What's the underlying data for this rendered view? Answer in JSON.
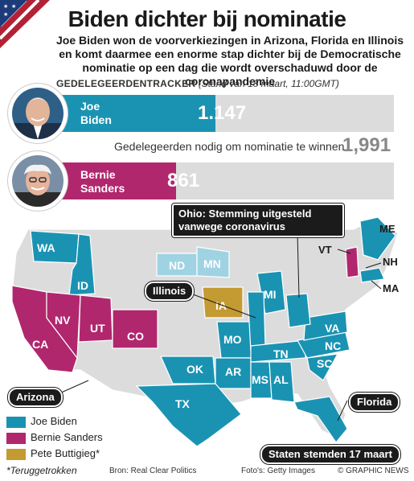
{
  "title": "Biden dichter bij nominatie",
  "subtitle": "Joe Biden won de voorverkiezingen in Arizona, Florida en Illinois en komt daarmee een enorme stap dichter bij de Democratische nominatie op een dag die wordt overschaduwd door de coronapandemie",
  "tracker": {
    "heading": "GEDELEGEERDENTRACKER",
    "stand": "(Stand van 18 maart, 11:00GMT)",
    "needed_label": "Gedelegeerden nodig om nominatie te winnen",
    "needed_value": "1,991",
    "needed_number": 1991
  },
  "candidates": [
    {
      "name_line1": "Joe",
      "name_line2": "Biden",
      "delegates": "1.147",
      "delegates_number": 1147,
      "color": "#1a93b3"
    },
    {
      "name_line1": "Bernie",
      "name_line2": "Sanders",
      "delegates": "861",
      "delegates_number": 861,
      "color": "#b1276e"
    }
  ],
  "callouts": {
    "ohio": "Ohio: Stemming uitgesteld vanwege coronavirus",
    "illinois": "Illinois",
    "arizona": "Arizona",
    "florida": "Florida",
    "voted": "Staten stemden 17 maart"
  },
  "states": {
    "WA": "WA",
    "ID": "ID",
    "ND": "ND",
    "MN": "MN",
    "CA": "CA",
    "NV": "NV",
    "UT": "UT",
    "CO": "CO",
    "IA": "IA",
    "MO": "MO",
    "MI": "MI",
    "OK": "OK",
    "AR": "AR",
    "TX": "TX",
    "MS": "MS",
    "AL": "AL",
    "TN": "TN",
    "VA": "VA",
    "NC": "NC",
    "SC": "SC",
    "ME": "ME",
    "VT": "VT",
    "NH": "NH",
    "MA": "MA"
  },
  "legend": [
    {
      "label": "Joe Biden",
      "color": "#1a93b3"
    },
    {
      "label": "Bernie Sanders",
      "color": "#b1276e"
    },
    {
      "label": "Pete Buttigieg*",
      "color": "#c49a33"
    }
  ],
  "footnote": "*Teruggetrokken",
  "source": "Bron: Real Clear Politics",
  "photos": "Foto's: Getty Images",
  "credit": "© GRAPHIC NEWS",
  "colors": {
    "biden": "#1a93b3",
    "sanders": "#b1276e",
    "buttigieg": "#c49a33",
    "undecided": "#dcdcdc",
    "light_biden": "#9fd3e3"
  }
}
